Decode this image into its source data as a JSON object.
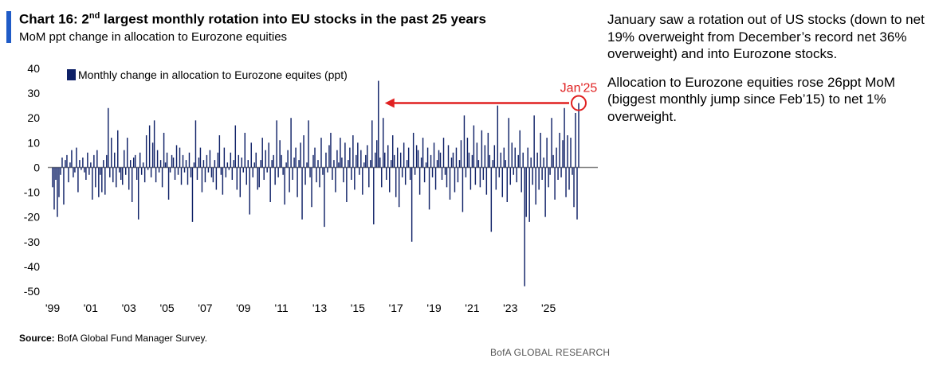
{
  "title": {
    "prefix": "Chart 16: 2",
    "superscript": "nd",
    "suffix": " largest monthly rotation into EU stocks in the past 25 years"
  },
  "subtitle": "MoM ppt change in allocation to Eurozone equities",
  "commentary": [
    "January saw a rotation out of US stocks (down to net 19% overweight from December’s record net 36% overweight) and into Eurozone stocks.",
    "Allocation to Eurozone equities rose 26ppt MoM (biggest monthly jump since Feb’15) to net 1% overweight."
  ],
  "source": {
    "label": "Source:",
    "text": " BofA Global Fund Manager Survey."
  },
  "brand": "BofA GLOBAL RESEARCH",
  "colors": {
    "bar": "#0f2167",
    "accent": "#e02020",
    "title_bar": "#1f5bc7",
    "zero_line": "#888888"
  },
  "chart_data": {
    "type": "bar",
    "legend": "Monthly change in allocation to Eurozone equites (ppt)",
    "legend_position": "top-left",
    "grid": false,
    "ylim": [
      -50,
      40
    ],
    "yticks": [
      40,
      30,
      20,
      10,
      0,
      -10,
      -20,
      -30,
      -40,
      -50
    ],
    "xticks": [
      "'99",
      "'01",
      "'03",
      "'05",
      "'07",
      "'09",
      "'11",
      "'13",
      "'15",
      "'17",
      "'19",
      "'21",
      "'23",
      "'25"
    ],
    "start": "1999-01",
    "end": "2025-01",
    "highlight_label": "Jan'25",
    "series": [
      {
        "values": [
          -8,
          -17,
          -5,
          -20,
          -12,
          -3,
          4,
          -15,
          3,
          5,
          -6,
          2,
          7,
          -4,
          -2,
          8,
          -10,
          3,
          -1,
          4,
          -2,
          -5,
          6,
          -3,
          2,
          -13,
          5,
          -8,
          7,
          -12,
          -3,
          -10,
          3,
          -11,
          5,
          24,
          -4,
          12,
          -6,
          6,
          -8,
          15,
          -2,
          -5,
          -7,
          7,
          -3,
          12,
          -9,
          3,
          -14,
          4,
          5,
          -5,
          -21,
          6,
          -3,
          2,
          -6,
          13,
          -1,
          17,
          -4,
          10,
          19,
          -6,
          7,
          -2,
          3,
          -8,
          14,
          2,
          6,
          -13,
          -2,
          5,
          4,
          -5,
          9,
          -3,
          8,
          -7,
          5,
          -2,
          3,
          -7,
          6,
          -4,
          -22,
          2,
          19,
          -5,
          4,
          8,
          -10,
          3,
          -6,
          5,
          -2,
          7,
          -4,
          -6,
          3,
          -9,
          6,
          13,
          -3,
          -11,
          8,
          -4,
          2,
          -1,
          6,
          -5,
          3,
          17,
          -9,
          5,
          -12,
          4,
          -2,
          14,
          -7,
          3,
          -19,
          10,
          -4,
          2,
          6,
          -9,
          -8,
          3,
          12,
          -5,
          7,
          -2,
          10,
          -14,
          3,
          5,
          -7,
          19,
          -4,
          11,
          5,
          -3,
          -15,
          2,
          7,
          -10,
          20,
          -5,
          4,
          8,
          -12,
          3,
          10,
          -21,
          13,
          -7,
          2,
          19,
          -4,
          -16,
          5,
          8,
          -6,
          3,
          -8,
          12,
          -3,
          -24,
          6,
          -2,
          9,
          14,
          -5,
          3,
          -10,
          7,
          2,
          12,
          4,
          -6,
          10,
          -14,
          3,
          8,
          -5,
          13,
          -9,
          5,
          10,
          -3,
          7,
          -11,
          2,
          5,
          9,
          -8,
          3,
          19,
          -23,
          6,
          11,
          35,
          4,
          -8,
          20,
          6,
          -5,
          9,
          -10,
          3,
          13,
          5,
          -12,
          8,
          -16,
          6,
          -4,
          10,
          -7,
          3,
          8,
          -5,
          -30,
          14,
          -3,
          9,
          7,
          -11,
          4,
          12,
          -6,
          2,
          8,
          -17,
          5,
          -4,
          10,
          -9,
          3,
          7,
          6,
          -5,
          12,
          -3,
          -8,
          9,
          -13,
          4,
          6,
          -10,
          8,
          -6,
          3,
          11,
          -18,
          21,
          -4,
          12,
          6,
          -9,
          5,
          17,
          -7,
          10,
          3,
          -8,
          15,
          -5,
          9,
          -11,
          14,
          5,
          -26,
          3,
          9,
          -9,
          25,
          -4,
          6,
          -12,
          8,
          3,
          -14,
          20,
          -7,
          10,
          -3,
          8,
          -6,
          5,
          15,
          -10,
          6,
          -48,
          -20,
          8,
          -22,
          4,
          -7,
          21,
          -15,
          6,
          -9,
          14,
          -5,
          4,
          -20,
          12,
          -8,
          -3,
          20,
          5,
          -13,
          8,
          -5,
          14,
          -4,
          11,
          24,
          -12,
          13,
          -9,
          12,
          -3,
          -16,
          22,
          -21,
          26
        ]
      }
    ]
  }
}
